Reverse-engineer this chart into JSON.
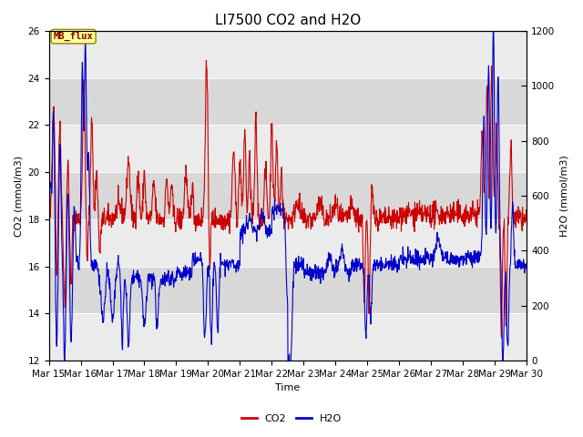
{
  "title": "LI7500 CO2 and H2O",
  "xlabel": "Time",
  "ylabel_left": "CO2 (mmol/m3)",
  "ylabel_right": "H2O (mmol/m3)",
  "xlim_days": [
    15,
    30
  ],
  "ylim_left": [
    12,
    26
  ],
  "ylim_right": [
    0,
    1200
  ],
  "yticks_left": [
    12,
    14,
    16,
    18,
    20,
    22,
    24,
    26
  ],
  "yticks_right": [
    0,
    200,
    400,
    600,
    800,
    1000,
    1200
  ],
  "co2_color": "#cc0000",
  "h2o_color": "#0000cc",
  "background_color": "#ffffff",
  "plot_bg_light": "#ebebeb",
  "plot_bg_dark": "#d8d8d8",
  "annotation_text": "MB_flux",
  "annotation_bg": "#ffff99",
  "annotation_border": "#888800",
  "annotation_text_color": "#880000",
  "legend_co2": "CO2",
  "legend_h2o": "H2O",
  "title_fontsize": 11,
  "axis_fontsize": 8,
  "tick_fontsize": 7.5,
  "legend_fontsize": 8,
  "linewidth": 0.8
}
